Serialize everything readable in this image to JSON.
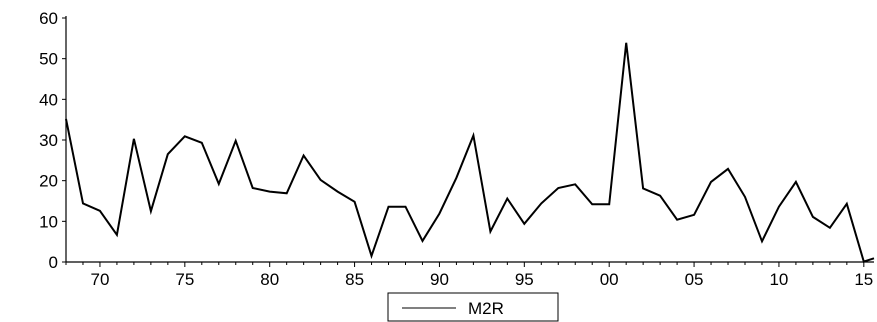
{
  "chart_data": {
    "type": "line",
    "title": "",
    "xlabel": "",
    "ylabel": "",
    "ylim": [
      0,
      60
    ],
    "xlim": [
      1968,
      2015.6
    ],
    "yticks": [
      "0",
      "10",
      "20",
      "30",
      "40",
      "50",
      "60"
    ],
    "xtick_labels": [
      "70",
      "75",
      "80",
      "85",
      "90",
      "95",
      "00",
      "05",
      "10",
      "15"
    ],
    "xtick_years": [
      1970,
      1975,
      1980,
      1985,
      1990,
      1995,
      2000,
      2005,
      2010,
      2015
    ],
    "grid": false,
    "legend_placement": "bottom-center",
    "line_color": "#000000",
    "series": [
      {
        "name": "M2R",
        "x": [
          1968,
          1969,
          1970,
          1971,
          1972,
          1973,
          1974,
          1975,
          1976,
          1977,
          1978,
          1979,
          1980,
          1981,
          1982,
          1983,
          1984,
          1985,
          1986,
          1987,
          1988,
          1989,
          1990,
          1991,
          1992,
          1993,
          1994,
          1995,
          1996,
          1997,
          1998,
          1999,
          2000,
          2001,
          2002,
          2003,
          2004,
          2005,
          2006,
          2007,
          2008,
          2009,
          2010,
          2011,
          2012,
          2013,
          2014,
          2015,
          2015.6
        ],
        "values": [
          35.2,
          14.4,
          12.6,
          6.7,
          30.3,
          12.5,
          26.5,
          30.9,
          29.3,
          19.2,
          29.8,
          18.2,
          17.3,
          16.9,
          26.2,
          20.2,
          17.3,
          14.8,
          1.5,
          13.6,
          13.6,
          5.2,
          11.9,
          20.7,
          31.1,
          7.5,
          15.6,
          9.4,
          14.4,
          18.2,
          19.1,
          14.2,
          14.2,
          53.9,
          18.1,
          16.3,
          10.4,
          11.6,
          19.7,
          22.9,
          16.0,
          5.1,
          13.6,
          19.7,
          11.1,
          8.4,
          14.3,
          0.1,
          0.9
        ]
      }
    ]
  }
}
